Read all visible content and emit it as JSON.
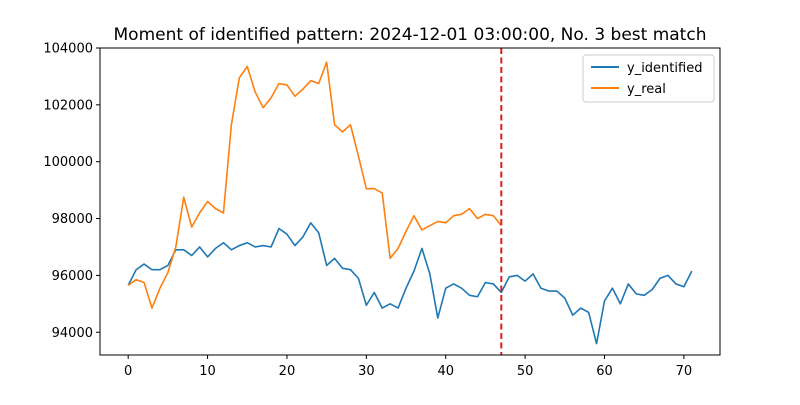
{
  "chart_data": {
    "type": "line",
    "title": "Moment of identified pattern: 2024-12-01 03:00:00, No. 3 best match",
    "xlabel": "",
    "ylabel": "",
    "xlim": [
      -3.55,
      74.55
    ],
    "ylim": [
      93200,
      104000
    ],
    "x_ticks": [
      0,
      10,
      20,
      30,
      40,
      50,
      60,
      70
    ],
    "y_ticks": [
      94000,
      96000,
      98000,
      100000,
      102000,
      104000
    ],
    "x_tick_labels": [
      "0",
      "10",
      "20",
      "30",
      "40",
      "50",
      "60",
      "70"
    ],
    "y_tick_labels": [
      "94000",
      "96000",
      "98000",
      "100000",
      "102000",
      "104000"
    ],
    "grid": false,
    "legend_position": "top-right",
    "vline": {
      "x": 47,
      "color": "#e41a1c",
      "style": "dashed"
    },
    "series": [
      {
        "name": "y_identified",
        "color": "#1f77b4",
        "x_start": 0,
        "values": [
          95650,
          96200,
          96400,
          96200,
          96200,
          96350,
          96900,
          96900,
          96700,
          97000,
          96650,
          96950,
          97150,
          96900,
          97050,
          97150,
          97000,
          97050,
          97000,
          97650,
          97450,
          97050,
          97350,
          97850,
          97500,
          96350,
          96600,
          96250,
          96200,
          95900,
          94950,
          95400,
          94850,
          95000,
          94850,
          95550,
          96150,
          96950,
          96050,
          94500,
          95550,
          95700,
          95550,
          95300,
          95250,
          95750,
          95700,
          95400,
          95950,
          96000,
          95800,
          96050,
          95550,
          95450,
          95450,
          95200,
          94600,
          94850,
          94700,
          93600,
          95100,
          95550,
          95000,
          95700,
          95350,
          95300,
          95500,
          95900,
          96000,
          95700,
          95600,
          96150
        ]
      },
      {
        "name": "y_real",
        "color": "#ff7f0e",
        "x_start": 0,
        "values": [
          95650,
          95850,
          95750,
          94850,
          95550,
          96100,
          97000,
          98750,
          97700,
          98200,
          98600,
          98350,
          98200,
          101300,
          102950,
          103350,
          102450,
          101900,
          102250,
          102750,
          102700,
          102300,
          102550,
          102850,
          102750,
          103500,
          101300,
          101050,
          101300,
          100200,
          99050,
          99050,
          98900,
          96600,
          96950,
          97550,
          98100,
          97600,
          97750,
          97900,
          97850,
          98100,
          98150,
          98350,
          98000,
          98150,
          98100,
          97750
        ]
      }
    ]
  }
}
